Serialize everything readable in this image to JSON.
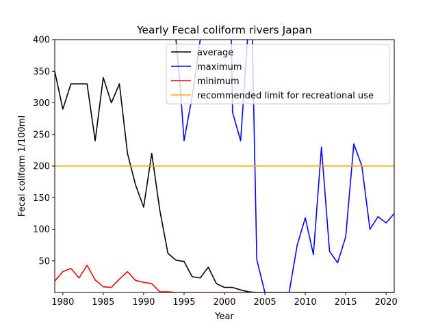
{
  "chart_data": {
    "type": "line",
    "title": "Yearly Fecal coliform rivers Japan",
    "xlabel": "Year",
    "ylabel": "Fecal coliform 1/100ml",
    "xlim": [
      1979,
      2021
    ],
    "ylim": [
      0,
      400
    ],
    "x_ticks": [
      1980,
      1985,
      1990,
      1995,
      2000,
      2005,
      2010,
      2015,
      2020
    ],
    "y_ticks": [
      50,
      100,
      150,
      200,
      250,
      300,
      350,
      400
    ],
    "grid": false,
    "legend_position": "top-right",
    "series": [
      {
        "name": "average",
        "color": "#000000",
        "points": [
          [
            1979,
            350
          ],
          [
            1980,
            290
          ],
          [
            1981,
            330
          ],
          [
            1982,
            330
          ],
          [
            1983,
            330
          ],
          [
            1984,
            240
          ],
          [
            1985,
            340
          ],
          [
            1986,
            300
          ],
          [
            1987,
            330
          ],
          [
            1988,
            220
          ],
          [
            1989,
            170
          ],
          [
            1990,
            135
          ],
          [
            1991,
            220
          ],
          [
            1992,
            130
          ],
          [
            1993,
            62
          ],
          [
            1994,
            51
          ],
          [
            1995,
            49
          ],
          [
            1996,
            25
          ],
          [
            1997,
            23
          ],
          [
            1998,
            40
          ],
          [
            1999,
            14
          ],
          [
            2000,
            8
          ],
          [
            2001,
            8
          ],
          [
            2002,
            4
          ],
          [
            2003,
            1
          ],
          [
            2004,
            0
          ],
          [
            2005,
            0
          ],
          [
            2006,
            0
          ],
          [
            2007,
            0
          ],
          [
            2008,
            0
          ],
          [
            2009,
            0
          ],
          [
            2010,
            0
          ],
          [
            2011,
            0
          ],
          [
            2012,
            0
          ],
          [
            2013,
            0
          ],
          [
            2014,
            0
          ],
          [
            2015,
            0
          ],
          [
            2016,
            0
          ],
          [
            2017,
            0
          ],
          [
            2018,
            0
          ],
          [
            2019,
            0
          ],
          [
            2020,
            0
          ],
          [
            2021,
            0
          ]
        ]
      },
      {
        "name": "maximum",
        "color": "#0000ff",
        "points": [
          [
            1994,
            400
          ],
          [
            1994.5,
            330
          ],
          [
            1995,
            240
          ],
          [
            1996,
            310
          ],
          [
            1997,
            400
          ],
          [
            1997.2,
            430
          ],
          [
            2000.8,
            430
          ],
          [
            2001,
            285
          ],
          [
            2002,
            240
          ],
          [
            2003,
            430
          ],
          [
            2003.4,
            430
          ],
          [
            2004,
            52
          ],
          [
            2005,
            0
          ],
          [
            2006,
            0
          ],
          [
            2007,
            0
          ],
          [
            2008,
            0
          ],
          [
            2009,
            75
          ],
          [
            2010,
            118
          ],
          [
            2011,
            60
          ],
          [
            2012,
            230
          ],
          [
            2013,
            65
          ],
          [
            2014,
            47
          ],
          [
            2015,
            88
          ],
          [
            2016,
            235
          ],
          [
            2017,
            200
          ],
          [
            2018,
            100
          ],
          [
            2019,
            120
          ],
          [
            2020,
            110
          ],
          [
            2021,
            125
          ]
        ]
      },
      {
        "name": "minimum",
        "color": "#ff0000",
        "points": [
          [
            1979,
            18
          ],
          [
            1980,
            33
          ],
          [
            1981,
            38
          ],
          [
            1982,
            23
          ],
          [
            1983,
            43
          ],
          [
            1984,
            20
          ],
          [
            1985,
            9
          ],
          [
            1986,
            8
          ],
          [
            1987,
            21
          ],
          [
            1988,
            33
          ],
          [
            1989,
            19
          ],
          [
            1990,
            16
          ],
          [
            1991,
            14
          ],
          [
            1992,
            1
          ],
          [
            1993,
            1
          ],
          [
            1994,
            0
          ],
          [
            1995,
            0
          ],
          [
            1996,
            0
          ],
          [
            1997,
            0
          ],
          [
            1998,
            0
          ],
          [
            1999,
            0
          ],
          [
            2000,
            0
          ],
          [
            2001,
            0
          ],
          [
            2002,
            0
          ],
          [
            2003,
            0
          ],
          [
            2004,
            0
          ],
          [
            2005,
            0
          ],
          [
            2006,
            0
          ],
          [
            2007,
            0
          ],
          [
            2008,
            0
          ],
          [
            2009,
            0
          ],
          [
            2010,
            0
          ],
          [
            2011,
            0
          ],
          [
            2012,
            0
          ],
          [
            2013,
            0
          ],
          [
            2014,
            0
          ],
          [
            2015,
            0
          ],
          [
            2016,
            0
          ],
          [
            2017,
            0
          ],
          [
            2018,
            0
          ],
          [
            2019,
            0
          ],
          [
            2020,
            0
          ],
          [
            2021,
            0
          ]
        ]
      },
      {
        "name": "recommended limit for recreational use",
        "color": "#ffa500",
        "points": [
          [
            1979,
            200
          ],
          [
            2021,
            200
          ]
        ]
      }
    ]
  }
}
